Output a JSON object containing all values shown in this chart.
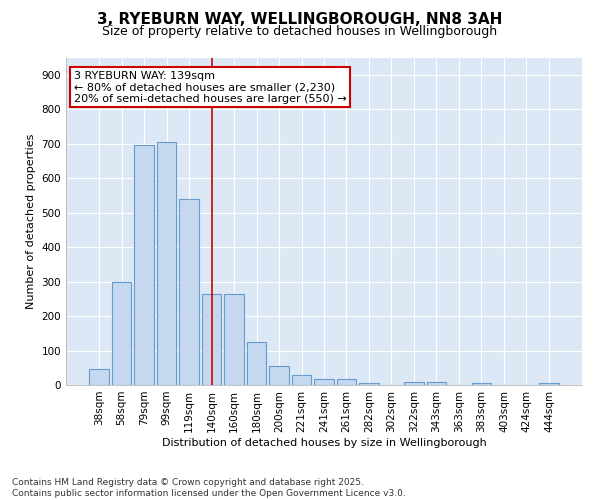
{
  "title_line1": "3, RYEBURN WAY, WELLINGBOROUGH, NN8 3AH",
  "title_line2": "Size of property relative to detached houses in Wellingborough",
  "xlabel": "Distribution of detached houses by size in Wellingborough",
  "ylabel": "Number of detached properties",
  "categories": [
    "38sqm",
    "58sqm",
    "79sqm",
    "99sqm",
    "119sqm",
    "140sqm",
    "160sqm",
    "180sqm",
    "200sqm",
    "221sqm",
    "241sqm",
    "261sqm",
    "282sqm",
    "302sqm",
    "322sqm",
    "343sqm",
    "363sqm",
    "383sqm",
    "403sqm",
    "424sqm",
    "444sqm"
  ],
  "values": [
    45,
    300,
    695,
    705,
    540,
    265,
    265,
    125,
    55,
    28,
    18,
    18,
    5,
    0,
    8,
    8,
    0,
    5,
    0,
    0,
    5
  ],
  "bar_color": "#c5d8f0",
  "bar_edge_color": "#6699cc",
  "plot_bg_color": "#dce8f5",
  "fig_bg_color": "#ffffff",
  "grid_color": "#ffffff",
  "annotation_text_line1": "3 RYEBURN WAY: 139sqm",
  "annotation_text_line2": "← 80% of detached houses are smaller (2,230)",
  "annotation_text_line3": "20% of semi-detached houses are larger (550) →",
  "annotation_box_color": "#ffffff",
  "annotation_border_color": "#cc0000",
  "vline_color": "#cc0000",
  "vline_x_index": 5,
  "footnote_line1": "Contains HM Land Registry data © Crown copyright and database right 2025.",
  "footnote_line2": "Contains public sector information licensed under the Open Government Licence v3.0.",
  "ylim": [
    0,
    950
  ],
  "yticks": [
    0,
    100,
    200,
    300,
    400,
    500,
    600,
    700,
    800,
    900
  ],
  "title1_fontsize": 11,
  "title2_fontsize": 9,
  "axis_label_fontsize": 8,
  "tick_fontsize": 7.5,
  "annotation_fontsize": 8,
  "footnote_fontsize": 6.5
}
